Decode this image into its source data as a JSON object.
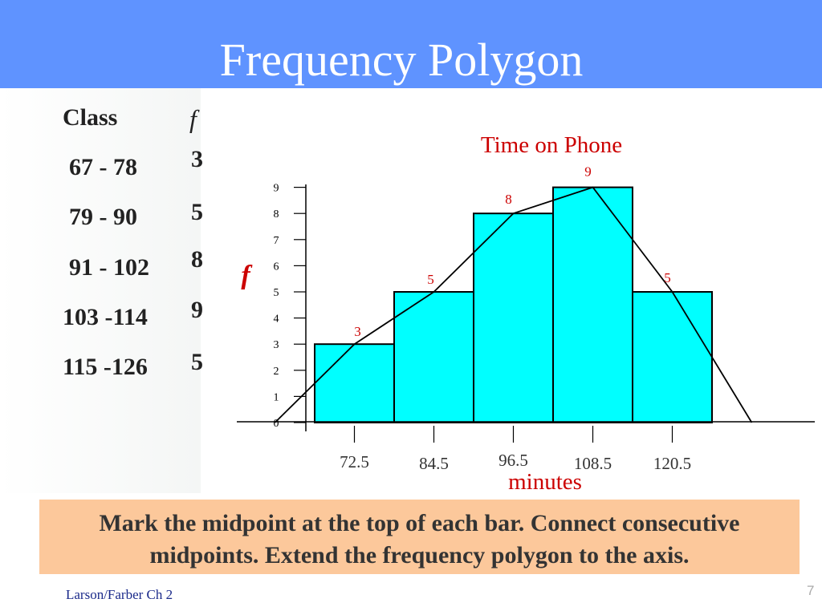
{
  "slide": {
    "title": "Frequency Polygon",
    "footer": "Larson/Farber Ch 2",
    "page_number": "7",
    "note_line1": "Mark the midpoint at the top of each bar. Connect consecutive",
    "note_line2": "midpoints. Extend the frequency polygon to the axis."
  },
  "table": {
    "header_class": "Class",
    "header_f": "f",
    "rows": [
      {
        "class": "67 - 78",
        "f": "3"
      },
      {
        "class": "79 - 90",
        "f": "5"
      },
      {
        "class": "91 - 102",
        "f": "8"
      },
      {
        "class": "103 -114",
        "f": "9"
      },
      {
        "class": "115 -126",
        "f": "5"
      }
    ]
  },
  "colors": {
    "title_bar": "#5f93ff",
    "bar_fill": "#00ffff",
    "accent_red": "#cc0000",
    "note_bg": "#fcc89b"
  },
  "chart_data": {
    "type": "bar",
    "title": "Time on Phone",
    "xlabel": "minutes",
    "ylabel": "f",
    "categories": [
      "72.5",
      "84.5",
      "96.5",
      "108.5",
      "120.5"
    ],
    "values": [
      3,
      5,
      8,
      9,
      5
    ],
    "data_labels": [
      "3",
      "5",
      "8",
      "9",
      "5"
    ],
    "polygon_points": [
      {
        "x": 60.5,
        "y": 0
      },
      {
        "x": 72.5,
        "y": 3
      },
      {
        "x": 84.5,
        "y": 5
      },
      {
        "x": 96.5,
        "y": 8
      },
      {
        "x": 108.5,
        "y": 9
      },
      {
        "x": 120.5,
        "y": 5
      },
      {
        "x": 132.5,
        "y": 0
      }
    ],
    "y_ticks": [
      "0",
      "1",
      "2",
      "3",
      "4",
      "5",
      "6",
      "7",
      "8",
      "9"
    ],
    "ylim": [
      0,
      9
    ],
    "grid": false,
    "legend": "none"
  }
}
